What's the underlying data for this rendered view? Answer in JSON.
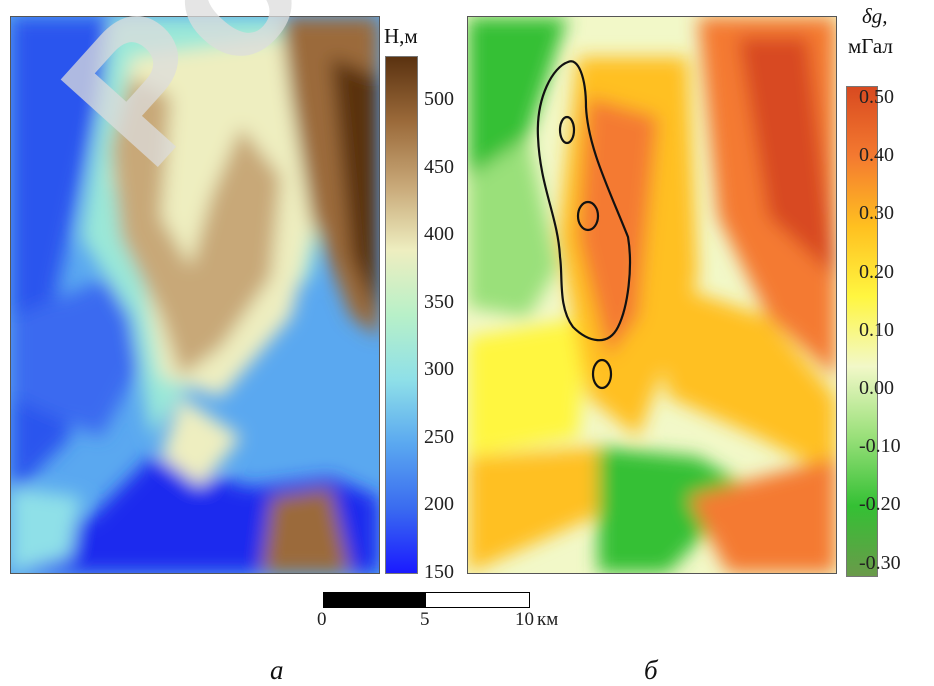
{
  "watermark": "Polo",
  "panel_a": {
    "unit_label": "Н,м",
    "ticks": [
      "500",
      "450",
      "400",
      "350",
      "300",
      "250",
      "200",
      "150"
    ],
    "colors": [
      "#1a1aff",
      "#3a6bf0",
      "#5aa8f0",
      "#8fe0e8",
      "#b8f0c8",
      "#eeeec0",
      "#c8a878",
      "#9b6a3a",
      "#5a3210"
    ]
  },
  "panel_b": {
    "unit_symbol": "δg,",
    "unit_label": "мГал",
    "ticks": [
      "0.50",
      "0.40",
      "0.30",
      "0.20",
      "0.10",
      "0.00",
      "-0.10",
      "-0.20",
      "-0.30"
    ],
    "colors": [
      "#6a9a4a",
      "#34c034",
      "#9ae07a",
      "#f2f8c8",
      "#fff640",
      "#ffc020",
      "#f47a30",
      "#d84a20"
    ]
  },
  "scale_bar": {
    "labels": [
      "0",
      "5",
      "10"
    ],
    "unit": "км"
  },
  "panel_letters": {
    "a": "а",
    "b": "б"
  }
}
